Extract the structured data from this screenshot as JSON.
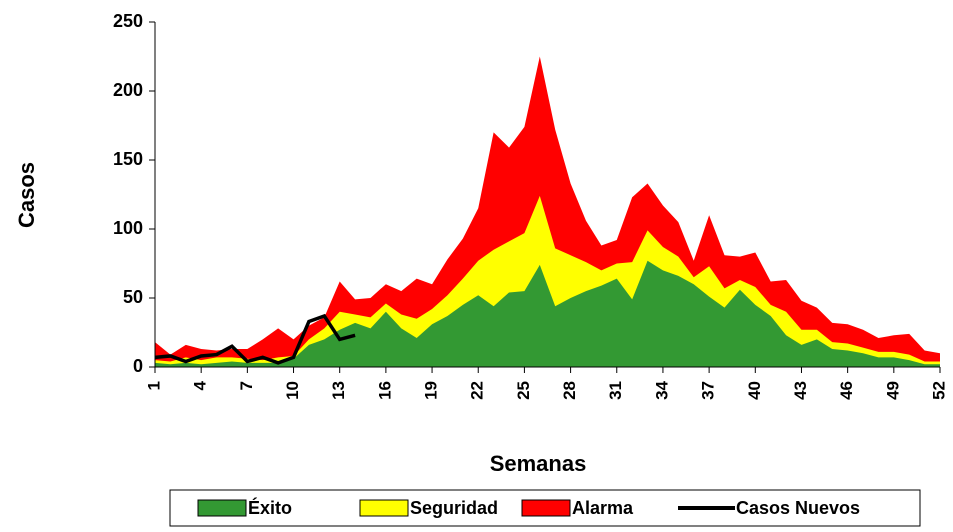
{
  "chart_data": {
    "type": "area",
    "y_label": "Casos",
    "x_label": "Semanas",
    "x": [
      1,
      2,
      3,
      4,
      5,
      6,
      7,
      8,
      9,
      10,
      11,
      12,
      13,
      14,
      15,
      16,
      17,
      18,
      19,
      20,
      21,
      22,
      23,
      24,
      25,
      26,
      27,
      28,
      29,
      30,
      31,
      32,
      33,
      34,
      35,
      36,
      37,
      38,
      39,
      40,
      41,
      42,
      43,
      44,
      45,
      46,
      47,
      48,
      49,
      50,
      51,
      52
    ],
    "xlim": [
      1,
      52
    ],
    "xticks": [
      1,
      4,
      7,
      10,
      13,
      16,
      19,
      22,
      25,
      28,
      31,
      34,
      37,
      40,
      43,
      46,
      49,
      52
    ],
    "ylim": [
      0,
      250
    ],
    "yticks": [
      0,
      50,
      100,
      150,
      200,
      250
    ],
    "series": [
      {
        "name": "Éxito",
        "color": "#339933",
        "values": [
          3,
          2,
          3,
          2,
          3,
          4,
          3,
          3,
          3,
          6,
          16,
          20,
          27,
          32,
          28,
          40,
          28,
          21,
          31,
          37,
          45,
          52,
          44,
          54,
          55,
          74,
          44,
          50,
          55,
          59,
          64,
          49,
          77,
          70,
          66,
          60,
          51,
          43,
          56,
          45,
          37,
          23,
          16,
          20,
          13,
          12,
          10,
          7,
          7,
          5,
          2,
          2
        ]
      },
      {
        "name": "Seguridad",
        "color": "#ffff00",
        "values": [
          5,
          4,
          7,
          5,
          7,
          7,
          6,
          5,
          7,
          8,
          20,
          28,
          40,
          38,
          36,
          46,
          38,
          35,
          42,
          52,
          64,
          77,
          85,
          91,
          97,
          124,
          86,
          81,
          76,
          70,
          75,
          76,
          99,
          87,
          80,
          65,
          73,
          57,
          63,
          58,
          45,
          40,
          27,
          27,
          18,
          17,
          14,
          11,
          11,
          9,
          4,
          4
        ]
      },
      {
        "name": "Alarma",
        "color": "#ff0000",
        "values": [
          18,
          9,
          16,
          13,
          12,
          13,
          13,
          20,
          28,
          20,
          30,
          36,
          62,
          49,
          50,
          60,
          55,
          64,
          60,
          78,
          93,
          115,
          170,
          159,
          174,
          225,
          172,
          133,
          106,
          88,
          92,
          123,
          133,
          117,
          105,
          77,
          110,
          81,
          80,
          83,
          62,
          63,
          48,
          43,
          32,
          31,
          27,
          21,
          23,
          24,
          12,
          10
        ]
      },
      {
        "name": "Casos Nuevos",
        "color": "#000000",
        "type": "line",
        "values": [
          7,
          8,
          4,
          8,
          9,
          15,
          4,
          7,
          3,
          7,
          33,
          37,
          20,
          23,
          null,
          null,
          null,
          null,
          null,
          null,
          null,
          null,
          null,
          null,
          null,
          null,
          null,
          null,
          null,
          null,
          null,
          null,
          null,
          null,
          null,
          null,
          null,
          null,
          null,
          null,
          null,
          null,
          null,
          null,
          null,
          null,
          null,
          null,
          null,
          null,
          null,
          null
        ]
      }
    ]
  }
}
